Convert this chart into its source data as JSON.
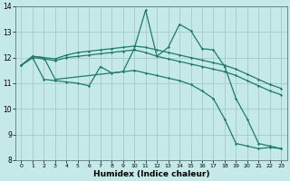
{
  "xlabel": "Humidex (Indice chaleur)",
  "bg_color": "#c5e8e8",
  "grid_color": "#aacece",
  "line_color": "#1e7b6b",
  "xlim": [
    -0.5,
    23.5
  ],
  "ylim": [
    8,
    14
  ],
  "xticks": [
    0,
    1,
    2,
    3,
    4,
    5,
    6,
    7,
    8,
    9,
    10,
    11,
    12,
    13,
    14,
    15,
    16,
    17,
    18,
    19,
    20,
    21,
    22,
    23
  ],
  "yticks": [
    8,
    9,
    10,
    11,
    12,
    13,
    14
  ],
  "s1_x": [
    0,
    1,
    2,
    3,
    4,
    5,
    6,
    7,
    8,
    9,
    10,
    11,
    12,
    13,
    14,
    15,
    16,
    17,
    18,
    19,
    20,
    21,
    22,
    23
  ],
  "s1_y": [
    11.7,
    12.05,
    12.0,
    11.95,
    12.1,
    12.2,
    12.25,
    12.3,
    12.35,
    12.4,
    12.45,
    12.4,
    12.3,
    12.2,
    12.1,
    12.0,
    11.9,
    11.8,
    11.7,
    11.55,
    11.35,
    11.15,
    10.95,
    10.8
  ],
  "s2_x": [
    0,
    1,
    2,
    3,
    4,
    5,
    6,
    7,
    8,
    9,
    10,
    11,
    12,
    13,
    14,
    15,
    16,
    17,
    18,
    19,
    20,
    21,
    22,
    23
  ],
  "s2_y": [
    11.7,
    12.0,
    11.95,
    11.88,
    12.0,
    12.05,
    12.1,
    12.15,
    12.2,
    12.25,
    12.3,
    12.2,
    12.05,
    11.95,
    11.85,
    11.75,
    11.65,
    11.55,
    11.45,
    11.3,
    11.1,
    10.9,
    10.7,
    10.55
  ],
  "s3_x": [
    0,
    1,
    2,
    3,
    9,
    10,
    11,
    12,
    13,
    14,
    15,
    16,
    17,
    18,
    19,
    20,
    21,
    22,
    23
  ],
  "s3_y": [
    11.7,
    12.05,
    12.0,
    11.15,
    11.45,
    12.35,
    13.85,
    12.05,
    12.4,
    13.3,
    13.05,
    12.35,
    12.3,
    11.65,
    10.4,
    9.6,
    8.65,
    8.55,
    8.45
  ],
  "s4_x": [
    0,
    1,
    2,
    3,
    4,
    5,
    6,
    7,
    8,
    9,
    10,
    11,
    12,
    13,
    14,
    15,
    16,
    17,
    18,
    19,
    20,
    21,
    22,
    23
  ],
  "s4_y": [
    11.7,
    12.0,
    11.15,
    11.1,
    11.05,
    11.0,
    10.9,
    11.65,
    11.4,
    11.45,
    11.5,
    11.4,
    11.3,
    11.2,
    11.1,
    10.95,
    10.7,
    10.4,
    9.6,
    8.65,
    8.55,
    8.45,
    8.5,
    8.45
  ]
}
